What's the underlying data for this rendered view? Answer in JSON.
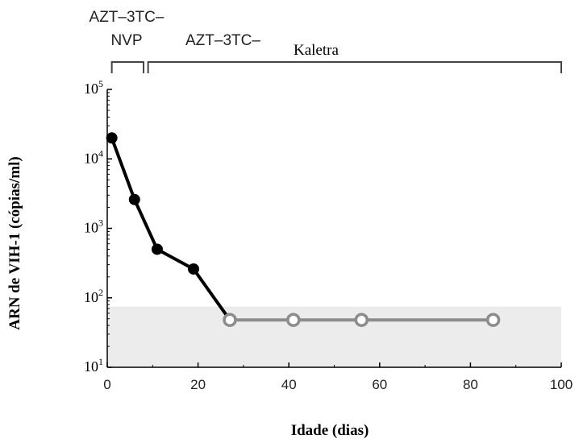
{
  "chart_data": {
    "type": "line",
    "xlabel": "Idade (dias)",
    "ylabel": "ARN de VIH-1 (cópias/ml)",
    "xlim": [
      0,
      100
    ],
    "ylim": [
      10,
      100000
    ],
    "yscale": "log",
    "x_ticks": [
      0,
      20,
      40,
      60,
      80,
      100
    ],
    "x_tick_labels": [
      "0",
      "20",
      "40",
      "60",
      "80",
      "100"
    ],
    "y_ticks": [
      {
        "value": 10,
        "base": "10",
        "exp": "1"
      },
      {
        "value": 100,
        "base": "10",
        "exp": "2"
      },
      {
        "value": 1000,
        "base": "10",
        "exp": "3"
      },
      {
        "value": 10000,
        "base": "10",
        "exp": "4"
      },
      {
        "value": 100000,
        "base": "10",
        "exp": "5"
      }
    ],
    "shaded_band": {
      "y_from": 10,
      "y_to": 75,
      "color": "#ececec"
    },
    "series": [
      {
        "color": "#000000",
        "marker": "filled-circle",
        "x": [
          1,
          6,
          11,
          19,
          27
        ],
        "y": [
          20000,
          2600,
          500,
          260,
          48
        ]
      },
      {
        "color": "#8c8c8c",
        "marker": "open-circle",
        "x": [
          27,
          41,
          56,
          85
        ],
        "y": [
          48,
          48,
          48,
          48
        ]
      }
    ],
    "treatment_periods": [
      {
        "label_lines": [
          "AZT–3TC–",
          "NVP"
        ],
        "x_from": 1,
        "x_to": 8
      },
      {
        "label_lines": [
          "AZT–3TC–"
        ],
        "suffix": "Kaletra",
        "x_from": 9,
        "x_to": 100
      }
    ]
  }
}
